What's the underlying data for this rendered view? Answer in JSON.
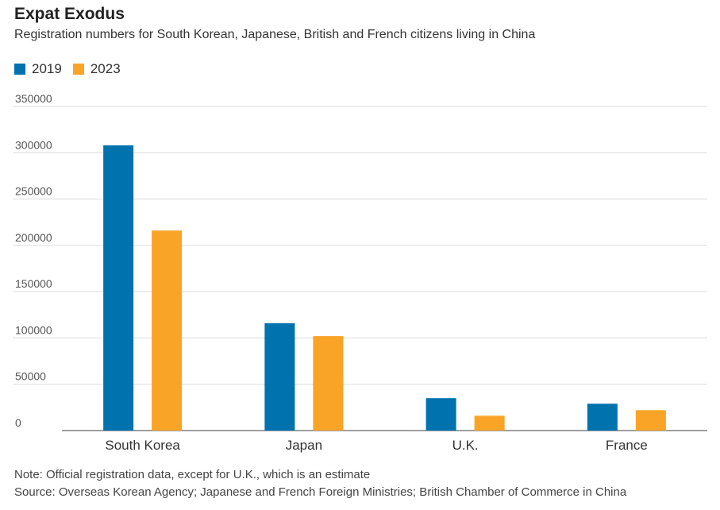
{
  "header": {
    "title": "Expat Exodus",
    "subtitle": "Registration numbers for South Korean, Japanese, British and French citizens living in China"
  },
  "legend": [
    {
      "label": "2019",
      "color": "#0072AE"
    },
    {
      "label": "2023",
      "color": "#F9A427"
    }
  ],
  "chart_data": {
    "type": "bar",
    "categories": [
      "South Korea",
      "Japan",
      "U.K.",
      "France"
    ],
    "series": [
      {
        "name": "2019",
        "color": "#0072AE",
        "values": [
          308000,
          116000,
          35000,
          29000
        ]
      },
      {
        "name": "2023",
        "color": "#F9A427",
        "values": [
          216000,
          102000,
          16000,
          22000
        ]
      }
    ],
    "ylim": [
      0,
      350000
    ],
    "yticks": [
      "0",
      "50000",
      "100000",
      "150000",
      "200000",
      "250000",
      "300000",
      "350000"
    ],
    "ytick_values": [
      0,
      50000,
      100000,
      150000,
      200000,
      250000,
      300000,
      350000
    ],
    "grid": true
  },
  "footer": {
    "note": "Note: Official registration data, except for U.K., which is an estimate",
    "source": "Source: Overseas Korean Agency; Japanese and French Foreign Ministries; British Chamber of Commerce in China"
  }
}
